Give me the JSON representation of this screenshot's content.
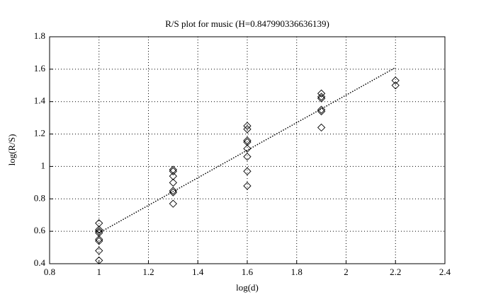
{
  "chart_data": {
    "type": "scatter",
    "title": "R/S plot for music (H=0.847990336636139)",
    "x_label": "log(d)",
    "y_label": "log(R/S)",
    "xlim": [
      0.8,
      2.4
    ],
    "xticks": [
      0.8,
      1,
      1.2,
      1.4,
      1.6,
      1.8,
      2,
      2.2,
      2.4
    ],
    "ylim": [
      0.4,
      1.8
    ],
    "yticks": [
      0.4,
      0.6,
      0.8,
      1,
      1.2,
      1.4,
      1.6,
      1.8
    ],
    "grid": true,
    "series": [
      {
        "color": "#000000",
        "marker": "diamond",
        "x": [
          1,
          1,
          1,
          1,
          1,
          1,
          1,
          1,
          1.3,
          1.3,
          1.3,
          1.3,
          1.3,
          1.3,
          1.3,
          1.6,
          1.6,
          1.6,
          1.6,
          1.6,
          1.6,
          1.6,
          1.6,
          1.9,
          1.9,
          1.9,
          1.9,
          1.9,
          1.9,
          2.2,
          2.2
        ],
        "values": [
          0.65,
          0.61,
          0.6,
          0.59,
          0.55,
          0.54,
          0.48,
          0.42,
          0.98,
          0.97,
          0.94,
          0.9,
          0.85,
          0.84,
          0.77,
          1.25,
          1.23,
          1.16,
          1.15,
          1.11,
          1.06,
          0.97,
          0.88,
          1.45,
          1.43,
          1.42,
          1.35,
          1.34,
          1.24,
          1.53,
          1.5
        ]
      }
    ],
    "fit_line": {
      "color": "#000000",
      "x": [
        1,
        2.2
      ],
      "values": [
        0.59,
        1.61
      ]
    }
  }
}
